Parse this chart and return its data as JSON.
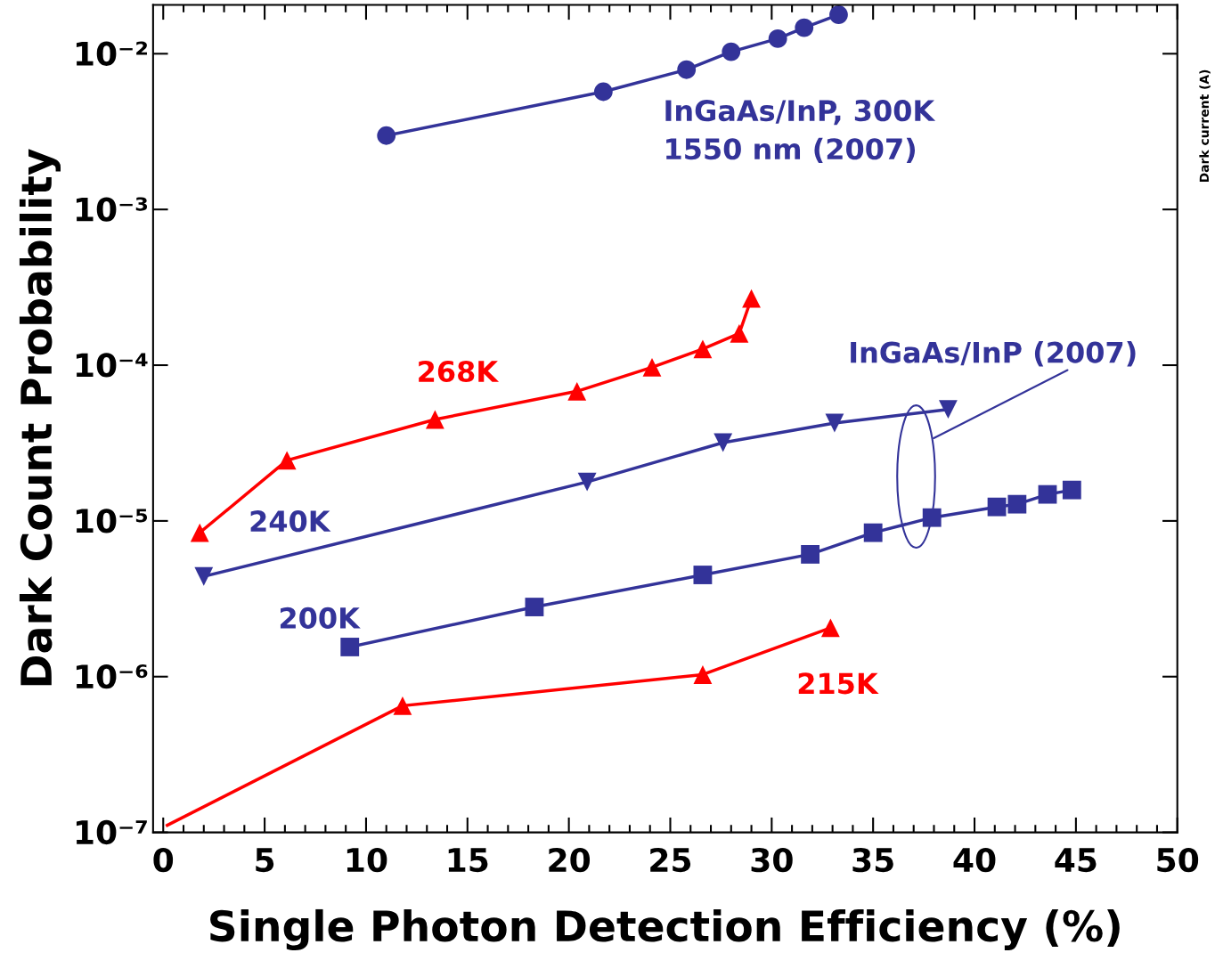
{
  "chart_data": {
    "type": "line",
    "xlabel": "Single Photon Detection Efficiency (%)",
    "ylabel": "Dark Count Probability",
    "log": "y",
    "xlim": [
      -0.5,
      50
    ],
    "xticks": [
      0,
      5,
      10,
      15,
      20,
      25,
      30,
      35,
      40,
      45,
      50
    ],
    "ylim": [
      1e-07,
      0.0206
    ],
    "yticks": [
      {
        "value": 1e-07,
        "label": "10⁻⁷"
      },
      {
        "value": 1e-06,
        "label": "10⁻⁶"
      },
      {
        "value": 1e-05,
        "label": "10⁻⁵"
      },
      {
        "value": 0.0001,
        "label": "10⁻⁴"
      },
      {
        "value": 0.001,
        "label": "10⁻³"
      },
      {
        "value": 0.01,
        "label": "10⁻²"
      }
    ],
    "line_style": "solid",
    "series": [
      {
        "color": "#333399",
        "marker": "circle",
        "x": [
          11.0,
          21.7,
          25.8,
          28.0,
          30.3,
          31.6,
          33.3
        ],
        "values": [
          0.00298,
          0.0057,
          0.0079,
          0.0103,
          0.0125,
          0.0147,
          0.0178
        ]
      },
      {
        "color": "#ff0000",
        "marker": "triangle",
        "x": [
          1.8,
          6.1,
          13.4,
          20.4,
          24.1,
          26.6,
          28.4,
          29.0
        ],
        "values": [
          8.4e-06,
          2.45e-05,
          4.48e-05,
          6.8e-05,
          9.7e-05,
          0.000127,
          0.00016,
          0.000268
        ]
      },
      {
        "color": "#333399",
        "marker": "triangle_down",
        "x": [
          2.0,
          20.9,
          27.6,
          33.1,
          38.7
        ],
        "values": [
          4.4e-06,
          1.78e-05,
          3.18e-05,
          4.25e-05,
          5.2e-05
        ]
      },
      {
        "color": "#333399",
        "marker": "square",
        "x": [
          9.2,
          18.3,
          26.6,
          31.9,
          35.0,
          37.9,
          41.1,
          42.1,
          43.6,
          44.8
        ],
        "values": [
          1.55e-06,
          2.8e-06,
          4.5e-06,
          6.1e-06,
          8.4e-06,
          1.05e-05,
          1.23e-05,
          1.28e-05,
          1.48e-05,
          1.58e-05
        ]
      },
      {
        "color": "#ff0000",
        "x": [
          0.2,
          11.8
        ],
        "values": [
          1.11e-07,
          6.5e-07
        ]
      },
      {
        "color": "#ff0000",
        "marker": "triangle",
        "x": [
          11.8,
          26.6,
          32.9
        ],
        "values": [
          6.5e-07,
          1.03e-06,
          2.06e-06
        ]
      }
    ],
    "annotations": [
      "InGaAs/InP, 300K\n1550 nm (2007)",
      "268K",
      "240K",
      "200K",
      "215K",
      "InGaAs/InP (2007)",
      "Dark current (A)"
    ]
  }
}
